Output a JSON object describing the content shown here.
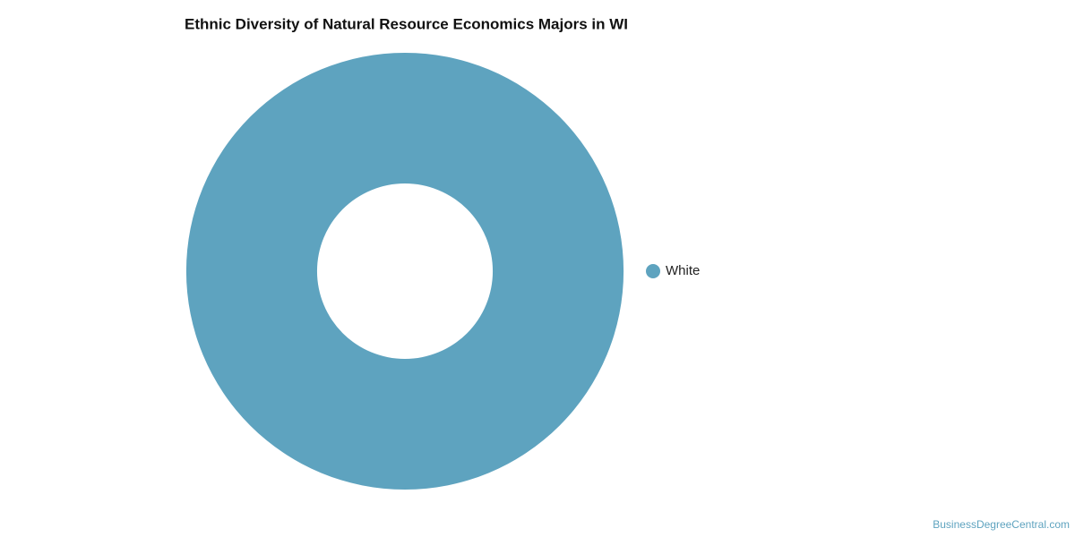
{
  "chart_data": {
    "type": "pie",
    "title": "Ethnic Diversity of Natural Resource Economics Majors in WI",
    "categories": [
      "White"
    ],
    "values": [
      100
    ],
    "colors": [
      "#5ea3bf"
    ],
    "legend": "right",
    "credit": "BusinessDegreeCentral.com"
  }
}
